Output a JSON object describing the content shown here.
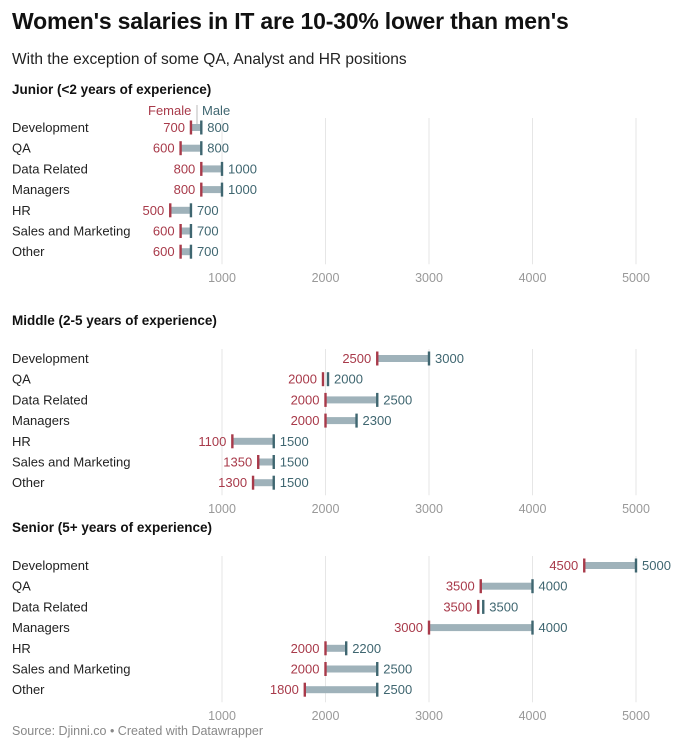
{
  "title": "Women's salaries in IT are 10-30% lower than men's",
  "subtitle": "With the exception of some QA, Analyst and HR positions",
  "source": "Source: Djinni.co • Created with Datawrapper",
  "colors": {
    "female": "#a83a4a",
    "male": "#3f6670",
    "bar_male_higher": "#9fb2ba",
    "bar_female_higher": "#cc7d86"
  },
  "chart_data": [
    {
      "type": "dumbbell",
      "title": "Junior (<2 years of experience)",
      "legend": [
        "Female",
        "Male"
      ],
      "categories": [
        "Development",
        "QA",
        "Data Related",
        "Managers",
        "HR",
        "Sales and Marketing",
        "Other"
      ],
      "series": [
        {
          "name": "Female",
          "values": [
            700,
            600,
            800,
            800,
            500,
            600,
            600
          ]
        },
        {
          "name": "Male",
          "values": [
            800,
            800,
            1000,
            1000,
            700,
            700,
            700
          ]
        }
      ],
      "xticks": [
        "1000",
        "2000",
        "3000",
        "4000",
        "5000"
      ],
      "xlim": [
        0,
        5000
      ]
    },
    {
      "type": "dumbbell",
      "title": "Middle (2-5 years of experience)",
      "categories": [
        "Development",
        "QA",
        "Data Related",
        "Managers",
        "HR",
        "Sales and Marketing",
        "Other"
      ],
      "series": [
        {
          "name": "Female",
          "values": [
            2500,
            2000,
            2000,
            2000,
            1100,
            1350,
            1300
          ]
        },
        {
          "name": "Male",
          "values": [
            3000,
            2000,
            2500,
            2300,
            1500,
            1500,
            1500
          ]
        }
      ],
      "xticks": [
        "1000",
        "2000",
        "3000",
        "4000",
        "5000"
      ],
      "xlim": [
        0,
        5000
      ]
    },
    {
      "type": "dumbbell",
      "title": "Senior (5+ years of experience)",
      "categories": [
        "Development",
        "QA",
        "Data Related",
        "Managers",
        "HR",
        "Sales and Marketing",
        "Other"
      ],
      "series": [
        {
          "name": "Female",
          "values": [
            4500,
            3500,
            3500,
            3000,
            2000,
            2000,
            1800
          ]
        },
        {
          "name": "Male",
          "values": [
            5000,
            4000,
            3500,
            4000,
            2200,
            2500,
            2500
          ]
        }
      ],
      "xticks": [
        "1000",
        "2000",
        "3000",
        "4000",
        "5000"
      ],
      "xlim": [
        0,
        5000
      ]
    }
  ]
}
